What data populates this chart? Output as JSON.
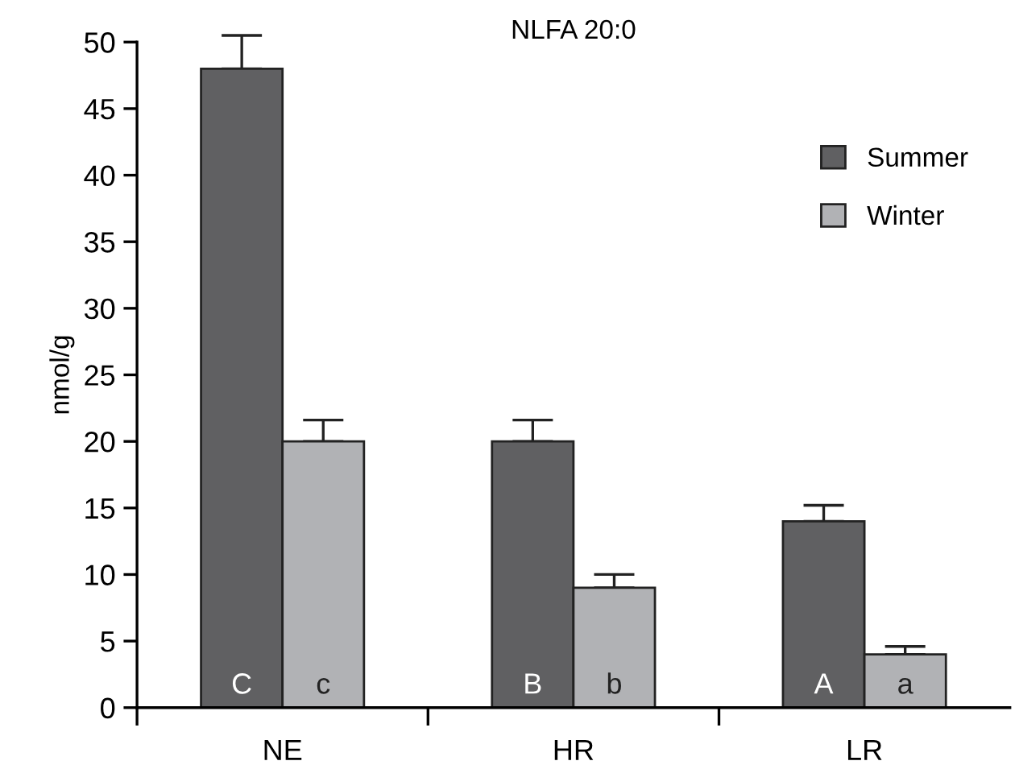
{
  "chart_data": {
    "type": "bar",
    "title": "NLFA 20:0",
    "ylabel": "nmol/g",
    "categories": [
      "NE",
      "HR",
      "LR"
    ],
    "series": [
      {
        "name": "Summer",
        "color": "#606062",
        "values": [
          48,
          20,
          14
        ],
        "errors": [
          2.5,
          1.6,
          1.2
        ],
        "value_labels": [
          "C",
          "B",
          "A"
        ]
      },
      {
        "name": "Winter",
        "color": "#b1b2b5",
        "values": [
          20,
          9,
          4
        ],
        "errors": [
          1.6,
          1.0,
          0.6
        ],
        "value_labels": [
          "c",
          "b",
          "a"
        ]
      }
    ],
    "ylim": [
      0,
      50
    ],
    "yticks": [
      0,
      5,
      10,
      15,
      20,
      25,
      30,
      35,
      40,
      45,
      50
    ],
    "grid": false,
    "legend": "top right"
  }
}
